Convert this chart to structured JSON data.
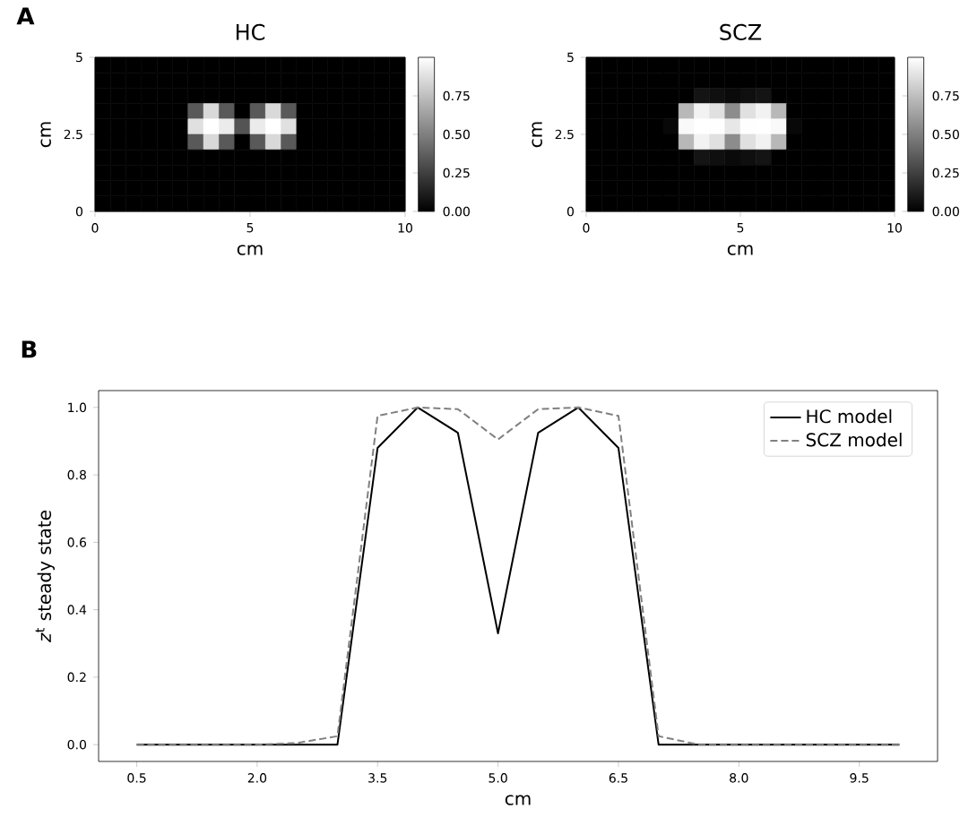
{
  "chart_data": [
    {
      "type": "heatmap",
      "title": "HC",
      "xlabel": "cm",
      "ylabel": "cm",
      "annotations": [
        "A"
      ],
      "xlim": [
        0,
        10
      ],
      "xticks": [
        0,
        5,
        10
      ],
      "ylim": [
        0,
        5
      ],
      "yticks": [
        0,
        2.5,
        5
      ],
      "clim": [
        0,
        1
      ],
      "cticks": [
        {
          "value": 0,
          "label": "0.00"
        },
        {
          "value": 0.25,
          "label": "0.25"
        },
        {
          "value": 0.5,
          "label": "0.50"
        },
        {
          "value": 0.75,
          "label": "0.75"
        }
      ],
      "cells": [
        [
          0,
          0,
          0,
          0,
          0,
          0,
          0,
          0,
          0,
          0,
          0,
          0,
          0,
          0,
          0,
          0,
          0,
          0,
          0,
          0
        ],
        [
          0,
          0,
          0,
          0,
          0,
          0,
          0,
          0,
          0,
          0,
          0,
          0,
          0,
          0,
          0,
          0,
          0,
          0,
          0,
          0
        ],
        [
          0,
          0,
          0,
          0,
          0,
          0,
          0,
          0,
          0,
          0,
          0,
          0,
          0,
          0,
          0,
          0,
          0,
          0,
          0,
          0
        ],
        [
          0,
          0,
          0,
          0,
          0,
          0,
          0.35,
          0.85,
          0.35,
          0,
          0.35,
          0.85,
          0.35,
          0,
          0,
          0,
          0,
          0,
          0,
          0
        ],
        [
          0,
          0,
          0,
          0,
          0,
          0,
          0.88,
          1.0,
          0.92,
          0.33,
          0.92,
          1.0,
          0.88,
          0,
          0,
          0,
          0,
          0,
          0,
          0
        ],
        [
          0,
          0,
          0,
          0,
          0,
          0,
          0.35,
          0.85,
          0.35,
          0,
          0.35,
          0.85,
          0.35,
          0,
          0,
          0,
          0,
          0,
          0,
          0
        ],
        [
          0,
          0,
          0,
          0,
          0,
          0,
          0,
          0,
          0,
          0,
          0,
          0,
          0,
          0,
          0,
          0,
          0,
          0,
          0,
          0
        ],
        [
          0,
          0,
          0,
          0,
          0,
          0,
          0,
          0,
          0,
          0,
          0,
          0,
          0,
          0,
          0,
          0,
          0,
          0,
          0,
          0
        ],
        [
          0,
          0,
          0,
          0,
          0,
          0,
          0,
          0,
          0,
          0,
          0,
          0,
          0,
          0,
          0,
          0,
          0,
          0,
          0,
          0
        ],
        [
          0,
          0,
          0,
          0,
          0,
          0,
          0,
          0,
          0,
          0,
          0,
          0,
          0,
          0,
          0,
          0,
          0,
          0,
          0,
          0
        ]
      ]
    },
    {
      "type": "heatmap",
      "title": "SCZ",
      "xlabel": "cm",
      "ylabel": "cm",
      "xlim": [
        0,
        10
      ],
      "xticks": [
        0,
        5,
        10
      ],
      "ylim": [
        0,
        5
      ],
      "yticks": [
        0,
        2.5,
        5
      ],
      "clim": [
        0,
        1
      ],
      "cticks": [
        {
          "value": 0,
          "label": "0.00"
        },
        {
          "value": 0.25,
          "label": "0.25"
        },
        {
          "value": 0.5,
          "label": "0.50"
        },
        {
          "value": 0.75,
          "label": "0.75"
        }
      ],
      "cells": [
        [
          0,
          0,
          0,
          0,
          0,
          0,
          0,
          0,
          0,
          0,
          0,
          0,
          0,
          0,
          0,
          0,
          0,
          0,
          0,
          0
        ],
        [
          0,
          0,
          0,
          0,
          0,
          0,
          0,
          0,
          0,
          0,
          0,
          0,
          0,
          0,
          0,
          0,
          0,
          0,
          0,
          0
        ],
        [
          0,
          0,
          0,
          0,
          0,
          0,
          0,
          0.08,
          0.06,
          0.04,
          0.06,
          0.08,
          0,
          0,
          0,
          0,
          0,
          0,
          0,
          0
        ],
        [
          0,
          0,
          0,
          0,
          0,
          0,
          0.72,
          0.95,
          0.88,
          0.55,
          0.88,
          0.95,
          0.72,
          0,
          0,
          0,
          0,
          0,
          0,
          0
        ],
        [
          0,
          0,
          0,
          0,
          0,
          0.03,
          0.975,
          1.0,
          0.995,
          0.905,
          0.995,
          1.0,
          0.975,
          0.03,
          0,
          0,
          0,
          0,
          0,
          0
        ],
        [
          0,
          0,
          0,
          0,
          0,
          0,
          0.72,
          0.95,
          0.88,
          0.55,
          0.88,
          0.95,
          0.72,
          0,
          0,
          0,
          0,
          0,
          0,
          0
        ],
        [
          0,
          0,
          0,
          0,
          0,
          0,
          0,
          0.08,
          0.06,
          0.04,
          0.06,
          0.08,
          0,
          0,
          0,
          0,
          0,
          0,
          0,
          0
        ],
        [
          0,
          0,
          0,
          0,
          0,
          0,
          0,
          0,
          0,
          0,
          0,
          0,
          0,
          0,
          0,
          0,
          0,
          0,
          0,
          0
        ],
        [
          0,
          0,
          0,
          0,
          0,
          0,
          0,
          0,
          0,
          0,
          0,
          0,
          0,
          0,
          0,
          0,
          0,
          0,
          0,
          0
        ],
        [
          0,
          0,
          0,
          0,
          0,
          0,
          0,
          0,
          0,
          0,
          0,
          0,
          0,
          0,
          0,
          0,
          0,
          0,
          0,
          0
        ]
      ]
    },
    {
      "type": "line",
      "xlabel": "cm",
      "ylabel": "*z*$^{t}$ steady state",
      "annotations": [
        "B"
      ],
      "legend": "top right",
      "marker": "none",
      "x": [
        0.5,
        1.0,
        1.5,
        2.0,
        2.5,
        3.0,
        3.5,
        4.0,
        4.5,
        5.0,
        5.5,
        6.0,
        6.5,
        7.0,
        7.5,
        8.0,
        8.5,
        9.0,
        9.5,
        10.0
      ],
      "xlim": [
        0.025,
        10.475
      ],
      "xticks": [
        0.5,
        {
          "value": 2,
          "label": "2.0"
        },
        3.5,
        {
          "value": 5,
          "label": "5.0"
        },
        6.5,
        {
          "value": 8,
          "label": "8.0"
        },
        9.5
      ],
      "ylim": [
        -0.05,
        1.05
      ],
      "yticks": [
        {
          "value": 0,
          "label": "0.0"
        },
        0.2,
        0.4,
        0.6,
        0.8,
        {
          "value": 1,
          "label": "1.0"
        }
      ],
      "series": [
        {
          "name": "HC model",
          "color": "#000000",
          "line_style": "solid",
          "values": [
            0,
            0,
            0,
            0,
            0,
            0,
            0.88,
            1.0,
            0.925,
            0.33,
            0.925,
            1.0,
            0.88,
            0,
            0,
            0,
            0,
            0,
            0,
            0
          ]
        },
        {
          "name": "SCZ model",
          "color": "#808080",
          "line_style": "dashed",
          "values": [
            0,
            0,
            0,
            0,
            0.005,
            0.025,
            0.975,
            1.0,
            0.995,
            0.905,
            0.995,
            1.0,
            0.975,
            0.025,
            0,
            0,
            0,
            0,
            0,
            0
          ]
        }
      ]
    }
  ]
}
